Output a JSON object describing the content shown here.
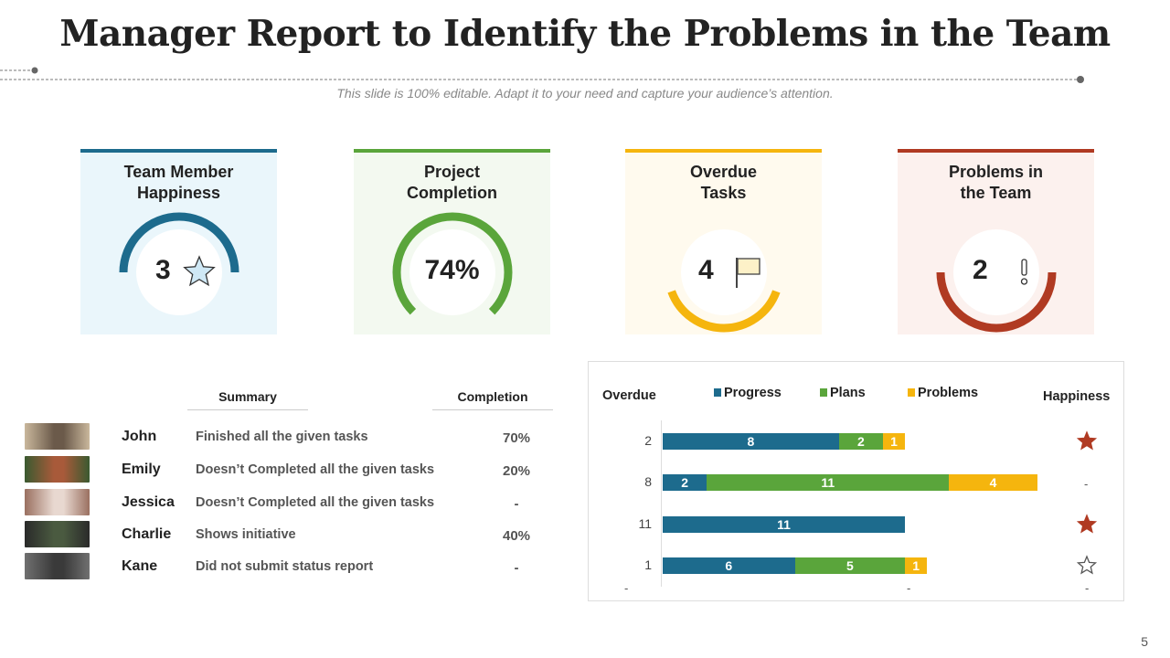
{
  "title": "Manager Report to Identify the Problems in the Team",
  "subtitle": "This slide is 100% editable. Adapt it to your need and capture your audience’s attention.",
  "cards": [
    {
      "title1": "Team Member",
      "title2": "Happiness",
      "value": "3",
      "icon": "star-icon",
      "color": "#1d6b8d",
      "bg": "#eaf6fb"
    },
    {
      "title1": "Project",
      "title2": "Completion",
      "value": "74%",
      "color": "#5aa53b",
      "bg": "#f3f9f0"
    },
    {
      "title1": "Overdue",
      "title2": "Tasks",
      "value": "4",
      "icon": "flag-icon",
      "color": "#f5b50e",
      "bg": "#fffaee"
    },
    {
      "title1": "Problems in",
      "title2": "the Team",
      "value": "2",
      "icon": "exclamation-icon",
      "color": "#b03a22",
      "bg": "#fcf1ee"
    }
  ],
  "table": {
    "summary_header": "Summary",
    "completion_header": "Completion",
    "rows": [
      {
        "name": "John",
        "summary": "Finished all the given tasks",
        "completion": "70%"
      },
      {
        "name": "Emily",
        "summary": "Doesn’t Completed all the given tasks",
        "completion": "20%"
      },
      {
        "name": "Jessica",
        "summary": "Doesn’t Completed all the given tasks",
        "completion": "-"
      },
      {
        "name": "Charlie",
        "summary": "Shows initiative",
        "completion": "40%"
      },
      {
        "name": "Kane",
        "summary": "Did not submit status report",
        "completion": "-"
      }
    ]
  },
  "chart_data": {
    "type": "bar",
    "orientation": "horizontal",
    "stacked": true,
    "left_label": "Overdue",
    "right_label": "Happiness",
    "categories": [
      "2",
      "8",
      "11",
      "1"
    ],
    "series": [
      {
        "name": "Progress",
        "color": "#1d6b8d",
        "values": [
          8,
          2,
          11,
          6
        ]
      },
      {
        "name": "Plans",
        "color": "#5aa53b",
        "values": [
          2,
          11,
          0,
          5
        ]
      },
      {
        "name": "Problems",
        "color": "#f5b50e",
        "values": [
          1,
          4,
          0,
          1
        ]
      }
    ],
    "happiness": [
      "filled-star",
      "-",
      "filled-star",
      "outline-star"
    ],
    "bottom_labels": [
      "-",
      "-",
      "-"
    ]
  },
  "page_number": "5"
}
